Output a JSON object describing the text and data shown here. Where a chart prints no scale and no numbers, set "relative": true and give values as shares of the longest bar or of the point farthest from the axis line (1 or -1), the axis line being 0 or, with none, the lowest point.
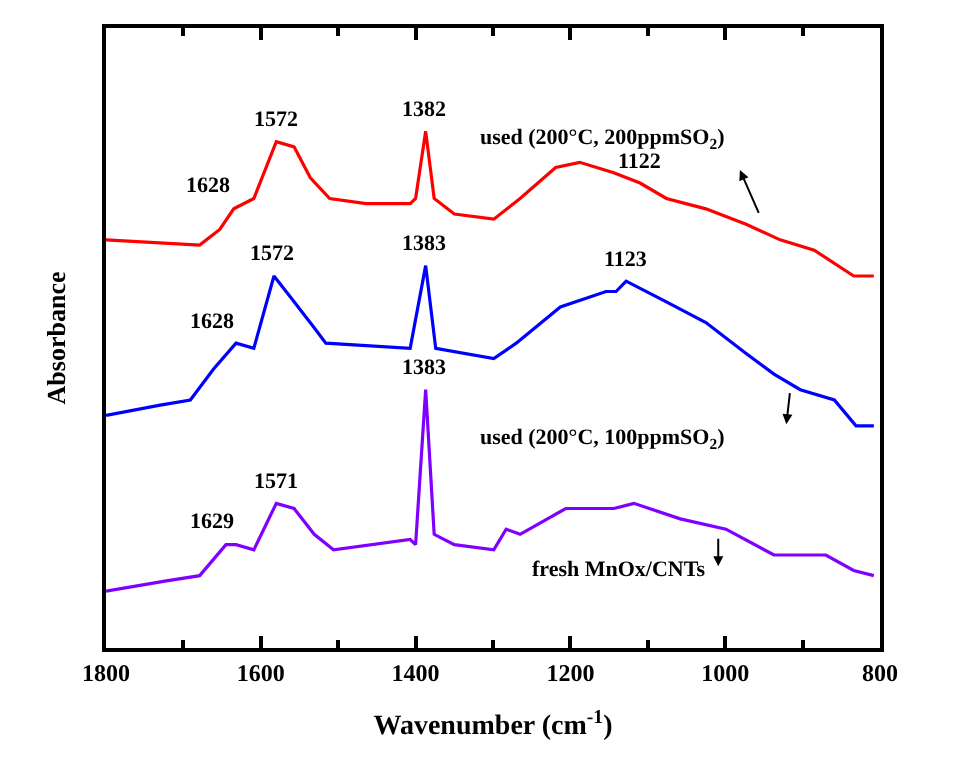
{
  "chart_data": {
    "type": "line",
    "relative": true,
    "xlabel": "Wavenumber (cm$^{-1}$)",
    "ylabel": "Absorbance",
    "xlim": [
      1800,
      800
    ],
    "xticks": [
      1800,
      1600,
      1400,
      1200,
      1000,
      800
    ],
    "marker": "none",
    "line_style": "solid",
    "series": [
      {
        "color": "#ff0000",
        "x": [
          1800,
          1679,
          1653,
          1635,
          1609,
          1580,
          1557,
          1536,
          1511,
          1464,
          1407,
          1400,
          1387,
          1376,
          1350,
          1299,
          1265,
          1219,
          1188,
          1144,
          1110,
          1076,
          1025,
          973,
          929,
          885,
          834,
          808
        ],
        "values": [
          0.79,
          0.78,
          0.81,
          0.85,
          0.87,
          0.98,
          0.97,
          0.91,
          0.87,
          0.86,
          0.86,
          0.87,
          1.0,
          0.87,
          0.84,
          0.83,
          0.87,
          0.93,
          0.94,
          0.92,
          0.9,
          0.87,
          0.85,
          0.82,
          0.79,
          0.77,
          0.72,
          0.72
        ]
      },
      {
        "color": "#0000ff",
        "x": [
          1800,
          1730,
          1691,
          1661,
          1632,
          1609,
          1583,
          1562,
          1531,
          1516,
          1407,
          1387,
          1374,
          1299,
          1270,
          1213,
          1154,
          1141,
          1128,
          1076,
          1025,
          973,
          937,
          903,
          859,
          831,
          808
        ],
        "values": [
          0.45,
          0.47,
          0.48,
          0.54,
          0.59,
          0.58,
          0.72,
          0.68,
          0.62,
          0.59,
          0.58,
          0.74,
          0.58,
          0.56,
          0.59,
          0.66,
          0.69,
          0.69,
          0.71,
          0.67,
          0.63,
          0.57,
          0.53,
          0.5,
          0.48,
          0.43,
          0.43
        ]
      },
      {
        "color": "#8000ff",
        "x": [
          1800,
          1722,
          1679,
          1645,
          1632,
          1609,
          1580,
          1557,
          1531,
          1506,
          1407,
          1400,
          1387,
          1376,
          1350,
          1299,
          1283,
          1265,
          1206,
          1144,
          1118,
          1058,
          999,
          937,
          870,
          834,
          808
        ],
        "values": [
          0.11,
          0.13,
          0.14,
          0.2,
          0.2,
          0.19,
          0.28,
          0.27,
          0.22,
          0.19,
          0.21,
          0.2,
          0.5,
          0.22,
          0.2,
          0.19,
          0.23,
          0.22,
          0.27,
          0.27,
          0.28,
          0.25,
          0.23,
          0.18,
          0.18,
          0.15,
          0.14
        ]
      }
    ],
    "annotations": [
      {
        "text": "1628",
        "x": 1635,
        "y": 0.85
      },
      {
        "text": "1572",
        "x": 1580,
        "y": 0.98
      },
      {
        "text": "1382",
        "x": 1387,
        "y": 1.0
      },
      {
        "text": "1122",
        "x": 1110,
        "y": 0.9
      },
      "used (200°C, 200ppmSO$_{2}$)",
      {
        "text": "1628",
        "x": 1632,
        "y": 0.59
      },
      {
        "text": "1572",
        "x": 1583,
        "y": 0.72
      },
      {
        "text": "1383",
        "x": 1387,
        "y": 0.74
      },
      {
        "text": "1123",
        "x": 1128,
        "y": 0.71
      },
      "used (200°C, 100ppmSO$_{2}$)",
      {
        "text": "1629",
        "x": 1632,
        "y": 0.2
      },
      {
        "text": "1571",
        "x": 1580,
        "y": 0.28
      },
      {
        "text": "1383",
        "x": 1387,
        "y": 0.5
      },
      "fresh MnOx/CNTs"
    ]
  }
}
